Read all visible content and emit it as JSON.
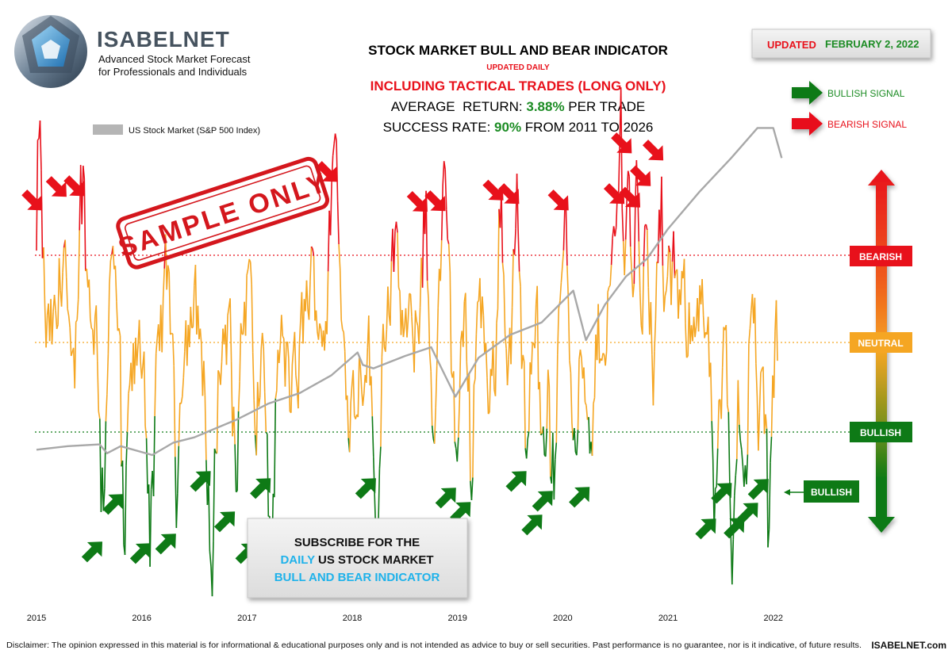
{
  "brand": {
    "name": "ISABELNET",
    "tagline_1": "Advanced Stock Market Forecast",
    "tagline_2": "for Professionals and Individuals"
  },
  "header": {
    "title": "STOCK MARKET BULL AND BEAR INDICATOR",
    "subtitle": "UPDATED DAILY",
    "tactical": "INCLUDING TACTICAL TRADES (LONG ONLY)",
    "avg_prefix": "AVERAGE  RETURN: ",
    "avg_value": "3.88%",
    "avg_suffix": " PER TRADE",
    "rate_prefix": "SUCCESS RATE: ",
    "rate_value": "90%",
    "rate_suffix": " FROM 2011 TO 2026"
  },
  "updated": {
    "label": "UPDATED",
    "date": "FEBRUARY 2, 2022"
  },
  "stamp": "SAMPLE ONLY",
  "signals": {
    "bullish": "BULLISH SIGNAL",
    "bearish": "BEARISH SIGNAL"
  },
  "zones": {
    "bearish": "BEARISH",
    "neutral": "NEUTRAL",
    "bullish": "BULLISH",
    "current": "BULLISH"
  },
  "subscribe": {
    "line1": "SUBSCRIBE FOR THE",
    "daily": "DAILY",
    "line2_rest": " US STOCK MARKET",
    "line3": "BULL AND BEAR INDICATOR"
  },
  "disclaimer": "Disclaimer: The opinion expressed in this material is for informational & educational purposes only and is not intended as advice to buy or sell securities. Past performance is no guarantee, nor is it indicative, of future results.",
  "site": "ISABELNET.com",
  "colors": {
    "bear": "#e8111b",
    "neutral": "#f5a623",
    "bull": "#0e7a16",
    "sp500": "#a8a8a8",
    "bull_text": "#1c8c24",
    "cyan": "#1fb2ea"
  },
  "chart_data": {
    "type": "line",
    "title": "STOCK MARKET BULL AND BEAR INDICATOR",
    "x_ticks": [
      "2015",
      "2016",
      "2017",
      "2018",
      "2019",
      "2020",
      "2021",
      "2022"
    ],
    "x_range": [
      2015.0,
      2022.1
    ],
    "levels": {
      "bearish": 1.0,
      "neutral": 0.5,
      "bullish": 0.0
    },
    "legend": "US Stock Market (S&P 500 Index)",
    "legend_position": "top-left",
    "series": [
      {
        "name": "US Stock Market (S&P 500 Index)",
        "scale": "relative",
        "x": [
          2015.0,
          2015.3,
          2015.6,
          2015.67,
          2015.8,
          2016.1,
          2016.3,
          2016.5,
          2016.7,
          2016.9,
          2017.2,
          2017.5,
          2017.8,
          2018.05,
          2018.1,
          2018.2,
          2018.5,
          2018.75,
          2018.98,
          2019.2,
          2019.5,
          2019.8,
          2020.1,
          2020.22,
          2020.4,
          2020.6,
          2020.8,
          2021.0,
          2021.3,
          2021.6,
          2021.85,
          2022.0,
          2022.08
        ],
        "y": [
          -0.1,
          -0.08,
          -0.07,
          -0.12,
          -0.08,
          -0.13,
          -0.06,
          -0.03,
          0.02,
          0.07,
          0.16,
          0.22,
          0.32,
          0.45,
          0.38,
          0.36,
          0.43,
          0.48,
          0.2,
          0.42,
          0.55,
          0.62,
          0.8,
          0.52,
          0.72,
          0.88,
          0.98,
          1.15,
          1.36,
          1.55,
          1.72,
          1.72,
          1.55
        ]
      }
    ],
    "bullish_signal_years": [
      2015.62,
      2015.82,
      2016.08,
      2016.32,
      2016.65,
      2016.88,
      2017.08,
      2017.22,
      2018.22,
      2018.98,
      2019.12,
      2019.65,
      2019.8,
      2019.9,
      2020.25,
      2021.45,
      2021.6,
      2021.72,
      2021.85,
      2021.95
    ],
    "bearish_signal_years": [
      2015.02,
      2015.25,
      2015.42,
      2017.82,
      2018.68,
      2018.85,
      2019.4,
      2019.55,
      2020.02,
      2020.55,
      2020.62,
      2020.7,
      2020.8,
      2020.92
    ]
  }
}
